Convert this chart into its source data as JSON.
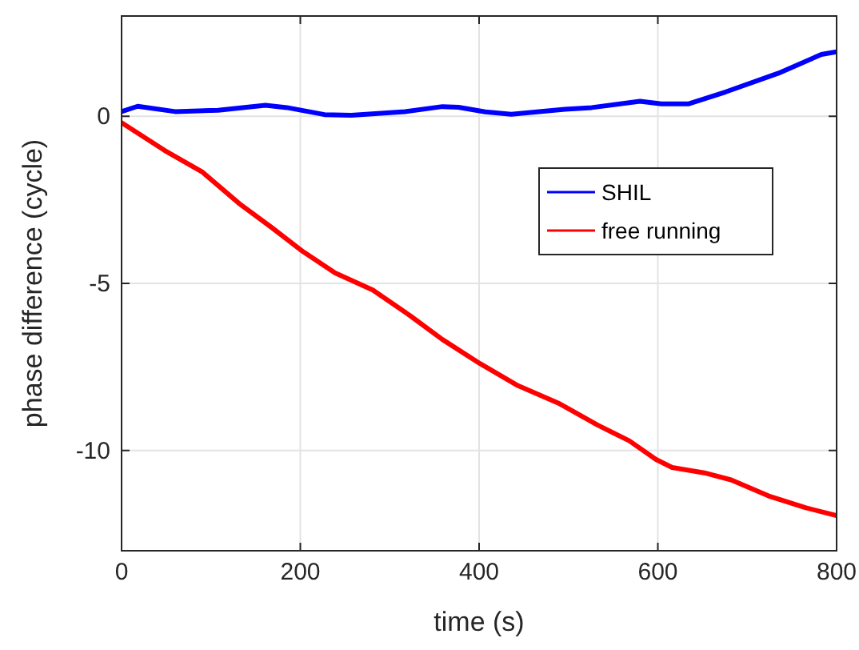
{
  "chart_data": {
    "type": "line",
    "xlabel": "time (s)",
    "ylabel": "phase difference (cycle)",
    "xlim": [
      0,
      800
    ],
    "ylim": [
      -13,
      3
    ],
    "xticks": [
      0,
      200,
      400,
      600,
      800
    ],
    "yticks": [
      {
        "value": -10,
        "label": "-10"
      },
      {
        "value": -5,
        "label": "-5"
      },
      0
    ],
    "grid": true,
    "legend": "right",
    "marker": "none",
    "line_style": "solid",
    "series": [
      {
        "name": "SHIL",
        "color": "#0000ff",
        "x": [
          0,
          18,
          60,
          108,
          161,
          185,
          227,
          257,
          317,
          359,
          377,
          407,
          436,
          496,
          526,
          580,
          604,
          634,
          676,
          735,
          783,
          800
        ],
        "values": [
          0.14,
          0.3,
          0.14,
          0.18,
          0.33,
          0.26,
          0.05,
          0.03,
          0.14,
          0.29,
          0.27,
          0.13,
          0.06,
          0.21,
          0.26,
          0.45,
          0.37,
          0.37,
          0.73,
          1.29,
          1.85,
          1.93
        ]
      },
      {
        "name": "free running",
        "color": "#ff0000",
        "x": [
          0,
          48,
          90,
          132,
          168,
          203,
          239,
          281,
          323,
          359,
          401,
          442,
          490,
          532,
          568,
          598,
          616,
          652,
          682,
          724,
          765,
          800
        ],
        "values": [
          -0.19,
          -1.02,
          -1.66,
          -2.62,
          -3.33,
          -4.05,
          -4.69,
          -5.2,
          -5.97,
          -6.68,
          -7.4,
          -8.04,
          -8.6,
          -9.23,
          -9.71,
          -10.27,
          -10.51,
          -10.67,
          -10.88,
          -11.36,
          -11.71,
          -11.95
        ]
      }
    ]
  }
}
